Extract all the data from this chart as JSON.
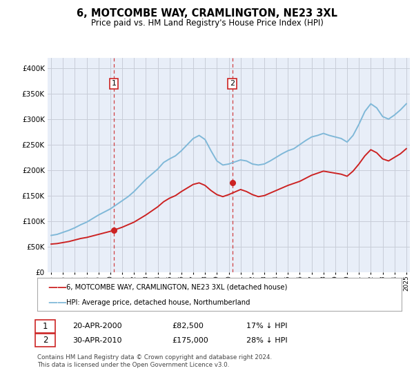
{
  "title": "6, MOTCOMBE WAY, CRAMLINGTON, NE23 3XL",
  "subtitle": "Price paid vs. HM Land Registry's House Price Index (HPI)",
  "legend_line1": "6, MOTCOMBE WAY, CRAMLINGTON, NE23 3XL (detached house)",
  "legend_line2": "HPI: Average price, detached house, Northumberland",
  "sale1_date": "20-APR-2000",
  "sale1_price": "£82,500",
  "sale1_hpi": "17% ↓ HPI",
  "sale2_date": "30-APR-2010",
  "sale2_price": "£175,000",
  "sale2_hpi": "28% ↓ HPI",
  "footnote": "Contains HM Land Registry data © Crown copyright and database right 2024.\nThis data is licensed under the Open Government Licence v3.0.",
  "hpi_color": "#7fb8d8",
  "price_color": "#cc2222",
  "marker_color": "#cc2222",
  "dashed_color": "#cc2222",
  "plot_bg_color": "#e8eef8",
  "grid_color": "#c8ccd8",
  "ylim": [
    0,
    420000
  ],
  "yticks": [
    0,
    50000,
    100000,
    150000,
    200000,
    250000,
    300000,
    350000,
    400000
  ],
  "sale1_year": 2000.3,
  "sale1_value": 82500,
  "sale2_year": 2010.3,
  "sale2_value": 175000,
  "hpi_years": [
    1995.0,
    1995.5,
    1996.0,
    1996.5,
    1997.0,
    1997.5,
    1998.0,
    1998.5,
    1999.0,
    1999.5,
    2000.0,
    2000.5,
    2001.0,
    2001.5,
    2002.0,
    2002.5,
    2003.0,
    2003.5,
    2004.0,
    2004.5,
    2005.0,
    2005.5,
    2006.0,
    2006.5,
    2007.0,
    2007.5,
    2008.0,
    2008.5,
    2009.0,
    2009.5,
    2010.0,
    2010.5,
    2011.0,
    2011.5,
    2012.0,
    2012.5,
    2013.0,
    2013.5,
    2014.0,
    2014.5,
    2015.0,
    2015.5,
    2016.0,
    2016.5,
    2017.0,
    2017.5,
    2018.0,
    2018.5,
    2019.0,
    2019.5,
    2020.0,
    2020.5,
    2021.0,
    2021.5,
    2022.0,
    2022.5,
    2023.0,
    2023.5,
    2024.0,
    2024.5,
    2025.0
  ],
  "hpi_values": [
    72000,
    74000,
    78000,
    82000,
    87000,
    93000,
    98000,
    105000,
    112000,
    118000,
    124000,
    132000,
    140000,
    148000,
    158000,
    170000,
    182000,
    192000,
    202000,
    215000,
    222000,
    228000,
    238000,
    250000,
    262000,
    268000,
    260000,
    238000,
    218000,
    210000,
    212000,
    216000,
    220000,
    218000,
    212000,
    210000,
    212000,
    218000,
    225000,
    232000,
    238000,
    242000,
    250000,
    258000,
    265000,
    268000,
    272000,
    268000,
    265000,
    262000,
    255000,
    268000,
    290000,
    315000,
    330000,
    322000,
    305000,
    300000,
    308000,
    318000,
    330000
  ],
  "price_years": [
    1995.0,
    1995.5,
    1996.0,
    1996.5,
    1997.0,
    1997.5,
    1998.0,
    1998.5,
    1999.0,
    1999.5,
    2000.0,
    2000.5,
    2001.0,
    2001.5,
    2002.0,
    2002.5,
    2003.0,
    2003.5,
    2004.0,
    2004.5,
    2005.0,
    2005.5,
    2006.0,
    2006.5,
    2007.0,
    2007.5,
    2008.0,
    2008.5,
    2009.0,
    2009.5,
    2010.0,
    2010.5,
    2011.0,
    2011.5,
    2012.0,
    2012.5,
    2013.0,
    2013.5,
    2014.0,
    2014.5,
    2015.0,
    2015.5,
    2016.0,
    2016.5,
    2017.0,
    2017.5,
    2018.0,
    2018.5,
    2019.0,
    2019.5,
    2020.0,
    2020.5,
    2021.0,
    2021.5,
    2022.0,
    2022.5,
    2023.0,
    2023.5,
    2024.0,
    2024.5,
    2025.0
  ],
  "price_values": [
    55000,
    56000,
    58000,
    60000,
    63000,
    66000,
    68000,
    71000,
    74000,
    77000,
    80000,
    84000,
    88000,
    93000,
    98000,
    105000,
    112000,
    120000,
    128000,
    138000,
    145000,
    150000,
    158000,
    165000,
    172000,
    175000,
    170000,
    160000,
    152000,
    148000,
    152000,
    157000,
    162000,
    158000,
    152000,
    148000,
    150000,
    155000,
    160000,
    165000,
    170000,
    174000,
    178000,
    184000,
    190000,
    194000,
    198000,
    196000,
    194000,
    192000,
    188000,
    198000,
    212000,
    228000,
    240000,
    234000,
    222000,
    218000,
    225000,
    232000,
    242000
  ]
}
